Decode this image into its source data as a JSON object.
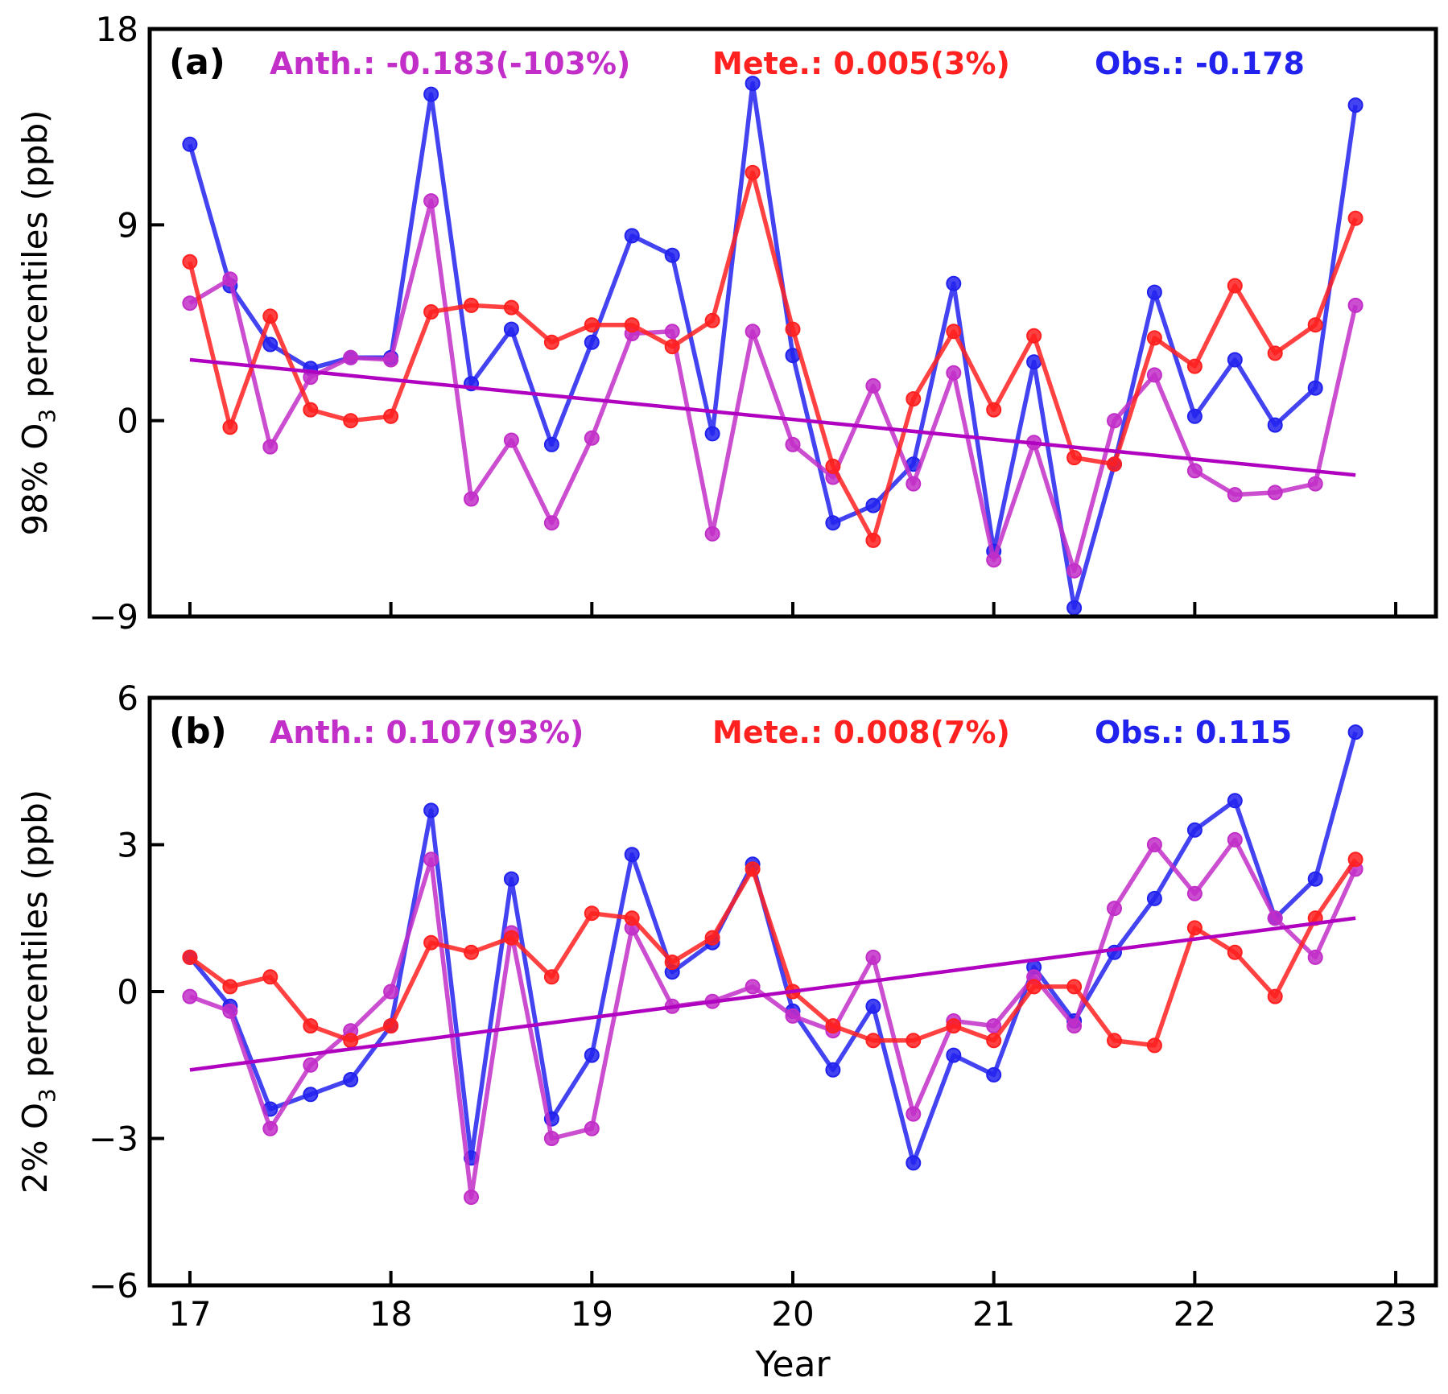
{
  "chart_data": [
    {
      "type": "line",
      "panel_label": "(a)",
      "ylabel": "98% O3 percentiles (ppb)",
      "xlabel": "",
      "xlim": [
        16.8,
        23.2
      ],
      "ylim": [
        -9,
        18
      ],
      "xticks": [
        "17",
        "18",
        "19",
        "20",
        "21",
        "22",
        "23"
      ],
      "yticks": [
        "−9",
        "0",
        "9",
        "18"
      ],
      "annotations": {
        "anth": "Anth.: -0.183(-103%)",
        "mete": "Mete.: 0.005(3%)",
        "obs": "Obs.: -0.178"
      },
      "colors": {
        "anth": "#c22ec8",
        "mete": "#ff2020",
        "obs": "#2222ee",
        "trend": "#b000c0"
      },
      "x": [
        17.0,
        17.2,
        17.4,
        17.6,
        17.8,
        18.0,
        18.2,
        18.4,
        18.6,
        18.8,
        19.0,
        19.2,
        19.4,
        19.6,
        19.8,
        20.0,
        20.2,
        20.4,
        20.6,
        20.8,
        21.0,
        21.2,
        21.4,
        21.6,
        21.8,
        22.0,
        22.2,
        22.4,
        22.6,
        22.8
      ],
      "series": [
        {
          "name": "Anth.",
          "values": [
            5.4,
            6.5,
            -1.2,
            2.0,
            2.9,
            2.8,
            10.1,
            -3.6,
            -0.9,
            -4.7,
            -0.8,
            4.0,
            4.1,
            -5.2,
            4.1,
            -1.1,
            -2.6,
            1.6,
            -2.9,
            2.2,
            -6.4,
            -1.0,
            -6.9,
            0.0,
            2.1,
            -2.3,
            -3.4,
            -3.3,
            -2.9,
            5.3
          ]
        },
        {
          "name": "Mete.",
          "values": [
            7.3,
            -0.3,
            4.8,
            0.5,
            0.0,
            0.2,
            5.0,
            5.3,
            5.2,
            3.6,
            4.4,
            4.4,
            3.4,
            4.6,
            11.4,
            4.2,
            -2.1,
            -5.5,
            1.0,
            4.1,
            0.5,
            3.9,
            -1.7,
            -2.0,
            3.8,
            2.5,
            6.2,
            3.1,
            4.4,
            9.3
          ]
        },
        {
          "name": "Obs.",
          "values": [
            12.7,
            6.2,
            3.5,
            2.4,
            2.9,
            2.9,
            15.0,
            1.7,
            4.2,
            -1.1,
            3.6,
            8.5,
            7.6,
            -0.6,
            15.5,
            3.0,
            -4.7,
            -3.9,
            -2.0,
            6.3,
            -6.0,
            2.7,
            -8.6,
            -2.0,
            5.9,
            0.2,
            2.8,
            -0.2,
            1.5,
            14.5
          ]
        }
      ],
      "trend": {
        "x": [
          17.0,
          22.8
        ],
        "y": [
          2.8,
          -2.5
        ]
      }
    },
    {
      "type": "line",
      "panel_label": "(b)",
      "ylabel": "2% O3 percentiles (ppb)",
      "xlabel": "Year",
      "xlim": [
        16.8,
        23.2
      ],
      "ylim": [
        -6,
        6
      ],
      "xticks": [
        "17",
        "18",
        "19",
        "20",
        "21",
        "22",
        "23"
      ],
      "yticks": [
        "−6",
        "−3",
        "0",
        "3",
        "6"
      ],
      "annotations": {
        "anth": "Anth.: 0.107(93%)",
        "mete": "Mete.: 0.008(7%)",
        "obs": "Obs.: 0.115"
      },
      "colors": {
        "anth": "#c22ec8",
        "mete": "#ff2020",
        "obs": "#2222ee",
        "trend": "#b000c0"
      },
      "x": [
        17.0,
        17.2,
        17.4,
        17.6,
        17.8,
        18.0,
        18.2,
        18.4,
        18.6,
        18.8,
        19.0,
        19.2,
        19.4,
        19.6,
        19.8,
        20.0,
        20.2,
        20.4,
        20.6,
        20.8,
        21.0,
        21.2,
        21.4,
        21.6,
        21.8,
        22.0,
        22.2,
        22.4,
        22.6,
        22.8
      ],
      "series": [
        {
          "name": "Anth.",
          "values": [
            -0.1,
            -0.4,
            -2.8,
            -1.5,
            -0.8,
            0.0,
            2.7,
            -4.2,
            1.2,
            -3.0,
            -2.8,
            1.3,
            -0.3,
            -0.2,
            0.1,
            -0.5,
            -0.8,
            0.7,
            -2.5,
            -0.6,
            -0.7,
            0.3,
            -0.7,
            1.7,
            3.0,
            2.0,
            3.1,
            1.5,
            0.7,
            2.5
          ]
        },
        {
          "name": "Mete.",
          "values": [
            0.7,
            0.1,
            0.3,
            -0.7,
            -1.0,
            -0.7,
            1.0,
            0.8,
            1.1,
            0.3,
            1.6,
            1.5,
            0.6,
            1.1,
            2.5,
            0.0,
            -0.7,
            -1.0,
            -1.0,
            -0.7,
            -1.0,
            0.1,
            0.1,
            -1.0,
            -1.1,
            1.3,
            0.8,
            -0.1,
            1.5,
            2.7
          ]
        },
        {
          "name": "Obs.",
          "values": [
            0.7,
            -0.3,
            -2.4,
            -2.1,
            -1.8,
            -0.7,
            3.7,
            -3.4,
            2.3,
            -2.6,
            -1.3,
            2.8,
            0.4,
            1.0,
            2.6,
            -0.4,
            -1.6,
            -0.3,
            -3.5,
            -1.3,
            -1.7,
            0.5,
            -0.6,
            0.8,
            1.9,
            3.3,
            3.9,
            1.5,
            2.3,
            5.3
          ]
        }
      ],
      "trend": {
        "x": [
          17.0,
          22.8
        ],
        "y": [
          -1.6,
          1.5
        ]
      }
    }
  ]
}
